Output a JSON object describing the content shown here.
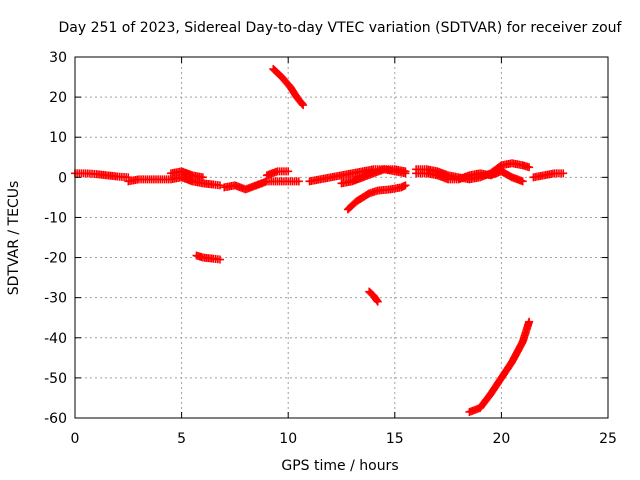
{
  "chart_data": {
    "type": "scatter",
    "title": "Day 251 of 2023, Sidereal Day-to-day VTEC variation (SDTVAR) for receiver zouf",
    "xlabel": "GPS time / hours",
    "ylabel": "SDTVAR / TECUs",
    "xlim": [
      0,
      25
    ],
    "ylim": [
      -60,
      30
    ],
    "x_ticks": [
      0,
      5,
      10,
      15,
      20,
      25
    ],
    "y_ticks": [
      -60,
      -50,
      -40,
      -30,
      -20,
      -10,
      0,
      10,
      20,
      30
    ],
    "grid": true,
    "marker": "+",
    "series": [
      {
        "name": "SDTVAR",
        "color": "#ff0000",
        "segments": [
          {
            "x": [
              0.0,
              0.5,
              1.0,
              1.5,
              2.0,
              2.5
            ],
            "y": [
              1.0,
              1.0,
              0.8,
              0.5,
              0.2,
              0.0
            ]
          },
          {
            "x": [
              2.5,
              3.0,
              3.5,
              4.0,
              4.5,
              5.0,
              5.5,
              6.0,
              6.5,
              6.8
            ],
            "y": [
              -1.0,
              -0.5,
              -0.5,
              -0.5,
              -0.5,
              0.0,
              -1.0,
              -1.5,
              -1.8,
              -2.0
            ]
          },
          {
            "x": [
              4.5,
              5.0,
              5.5,
              6.0
            ],
            "y": [
              1.0,
              1.5,
              0.5,
              0.0
            ]
          },
          {
            "x": [
              7.0,
              7.5,
              8.0,
              8.5,
              9.0,
              9.5,
              10.0,
              10.5
            ],
            "y": [
              -2.5,
              -2.0,
              -3.0,
              -2.0,
              -1.0,
              -1.0,
              -1.0,
              -1.0
            ]
          },
          {
            "x": [
              9.0,
              9.5,
              10.0
            ],
            "y": [
              0.5,
              1.5,
              1.5
            ]
          },
          {
            "x": [
              9.3,
              9.7,
              10.1,
              10.4,
              10.7
            ],
            "y": [
              27,
              25,
              22.5,
              20,
              18
            ]
          },
          {
            "x": [
              5.7,
              6.0,
              6.5,
              6.8
            ],
            "y": [
              -19.5,
              -20,
              -20.3,
              -20.5
            ]
          },
          {
            "x": [
              11.0,
              11.5,
              12.0,
              12.5,
              13.0,
              13.5,
              14.0,
              14.5,
              15.0,
              15.5
            ],
            "y": [
              -1.0,
              -0.5,
              0.0,
              0.5,
              1.0,
              1.5,
              2.0,
              2.0,
              2.0,
              1.5
            ]
          },
          {
            "x": [
              12.5,
              13.0,
              13.5,
              14.0,
              14.5,
              15.0,
              15.5
            ],
            "y": [
              -1.5,
              -1.0,
              0.0,
              1.0,
              2.0,
              1.5,
              1.0
            ]
          },
          {
            "x": [
              12.8,
              13.2,
              13.5,
              13.8,
              14.2,
              14.8,
              15.3,
              15.5
            ],
            "y": [
              -8.0,
              -6.0,
              -5.0,
              -4.0,
              -3.3,
              -3.0,
              -2.5,
              -2.0
            ]
          },
          {
            "x": [
              13.8,
              14.0,
              14.2
            ],
            "y": [
              -28.5,
              -29.5,
              -31.0
            ]
          },
          {
            "x": [
              16.0,
              16.5,
              17.0,
              17.5,
              18.0,
              18.5,
              19.0,
              19.5,
              20.0,
              20.5,
              21.0,
              21.3
            ],
            "y": [
              2.0,
              2.0,
              1.5,
              0.5,
              0.0,
              -0.5,
              0.0,
              1.0,
              3.0,
              3.5,
              3.0,
              2.5
            ]
          },
          {
            "x": [
              16.0,
              16.5,
              17.0,
              17.5,
              18.0,
              18.5,
              19.0,
              19.5,
              20.0,
              20.5,
              21.0
            ],
            "y": [
              1.0,
              1.0,
              0.5,
              -0.5,
              -0.5,
              0.5,
              1.0,
              0.5,
              1.5,
              0.0,
              -1.0
            ]
          },
          {
            "x": [
              21.5,
              22.0,
              22.5,
              22.9
            ],
            "y": [
              0.0,
              0.5,
              1.0,
              1.0
            ]
          },
          {
            "x": [
              18.5,
              19.0,
              19.5,
              20.0,
              20.5,
              21.0,
              21.3
            ],
            "y": [
              -58.5,
              -57.5,
              -54.0,
              -50.0,
              -46.0,
              -41.0,
              -36.0
            ]
          }
        ]
      }
    ]
  }
}
